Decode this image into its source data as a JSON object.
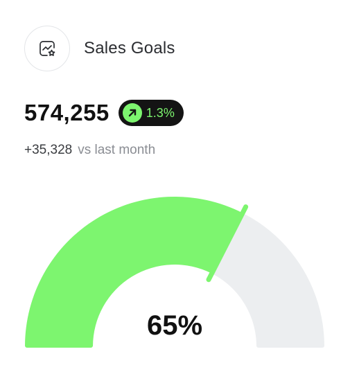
{
  "header": {
    "title": "Sales Goals",
    "icon": "chart-star-icon"
  },
  "metric": {
    "value": "574,255",
    "trend": {
      "direction": "up",
      "icon": "arrow-up-right-icon",
      "percent": "1.3%"
    }
  },
  "comparison": {
    "delta": "+35,328",
    "label": "vs last month"
  },
  "gauge": {
    "progress": 0.65,
    "label": "65%"
  },
  "colors": {
    "accent": "#7df56f",
    "track": "#eceef0",
    "badge_bg": "#141414"
  }
}
